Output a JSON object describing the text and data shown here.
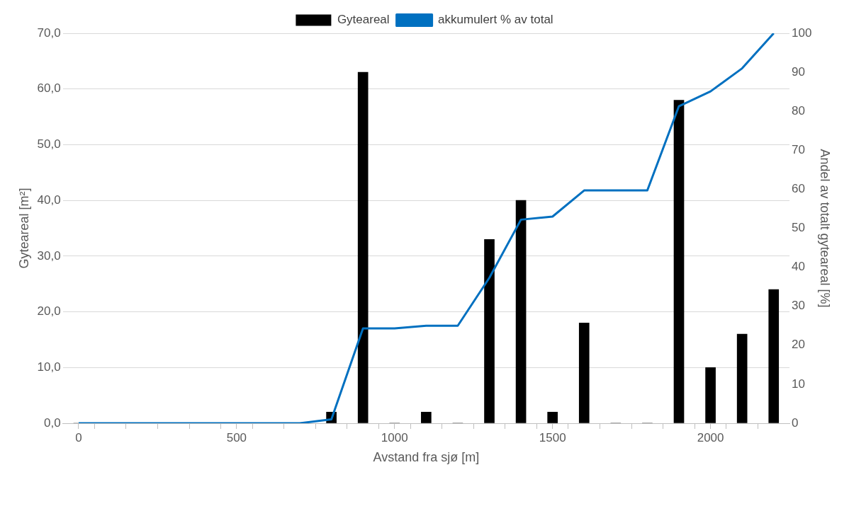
{
  "chart_data": {
    "type": "bar",
    "xlabel": "Avstand fra sjø [m]",
    "ylabel": "Gyteareal [m²]",
    "y2label": "Andel av totalt gyteareal [%]",
    "x": [
      0,
      100,
      200,
      300,
      400,
      500,
      600,
      700,
      800,
      900,
      1000,
      1100,
      1200,
      1300,
      1400,
      1500,
      1600,
      1700,
      1800,
      1900,
      2000,
      2100,
      2200
    ],
    "series": [
      {
        "name": "Gyteareal",
        "color": "#000000",
        "values": [
          0,
          0,
          0,
          0,
          0,
          0,
          0,
          0,
          2,
          63,
          0,
          2,
          0,
          33,
          40,
          2,
          18,
          0,
          0,
          58,
          10,
          16,
          24
        ]
      },
      {
        "name": "akkumulert % av total",
        "type": "line",
        "axis": "y2",
        "color": "#0070c0",
        "values": [
          0,
          0,
          0,
          0,
          0,
          0,
          0,
          0,
          1,
          24.3,
          24.3,
          25.0,
          25.0,
          37.3,
          52.2,
          53.0,
          59.7,
          59.7,
          59.7,
          81.3,
          85.1,
          91.0,
          100
        ]
      }
    ],
    "xlim": [
      -50,
      2250
    ],
    "xticks": [
      0,
      {
        "value": 50,
        "label": null
      },
      {
        "value": 150,
        "label": null
      },
      {
        "value": 250,
        "label": null
      },
      {
        "value": 350,
        "label": null
      },
      {
        "value": 450,
        "label": null
      },
      500,
      {
        "value": 550,
        "label": null
      },
      {
        "value": 650,
        "label": null
      },
      {
        "value": 750,
        "label": null
      },
      {
        "value": 850,
        "label": null
      },
      {
        "value": 950,
        "label": null
      },
      1000,
      {
        "value": 1050,
        "label": null
      },
      {
        "value": 1150,
        "label": null
      },
      {
        "value": 1250,
        "label": null
      },
      {
        "value": 1350,
        "label": null
      },
      {
        "value": 1450,
        "label": null
      },
      1500,
      {
        "value": 1550,
        "label": null
      },
      {
        "value": 1650,
        "label": null
      },
      {
        "value": 1750,
        "label": null
      },
      {
        "value": 1850,
        "label": null
      },
      {
        "value": 1950,
        "label": null
      },
      2000,
      {
        "value": 2050,
        "label": null
      },
      {
        "value": 2150,
        "label": null
      }
    ],
    "ylim": [
      0,
      70
    ],
    "yticks": [
      {
        "value": 0,
        "label": "0,0"
      },
      {
        "value": 10,
        "label": "10,0"
      },
      {
        "value": 20,
        "label": "20,0"
      },
      {
        "value": 30,
        "label": "30,0"
      },
      {
        "value": 40,
        "label": "40,0"
      },
      {
        "value": 50,
        "label": "50,0"
      },
      {
        "value": 60,
        "label": "60,0"
      },
      {
        "value": 70,
        "label": "70,0"
      }
    ],
    "y2lim": [
      0,
      100
    ],
    "y2ticks": [
      0,
      10,
      20,
      30,
      40,
      50,
      60,
      70,
      80,
      90,
      100
    ],
    "grid": "y",
    "legend": "top",
    "marker": "none",
    "line_style": "solid"
  }
}
